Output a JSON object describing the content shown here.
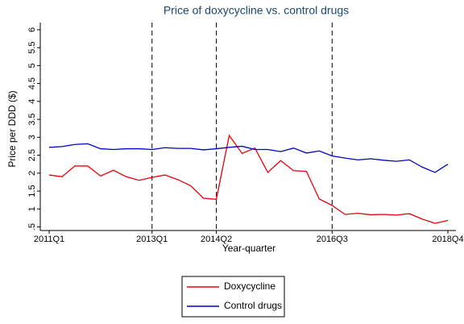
{
  "chart_data": {
    "type": "line",
    "title": "Price of doxycycline vs. control drugs",
    "x_label": "Year-quarter",
    "y_label": "Price per DDD ($)",
    "categories": [
      "2011Q1",
      null,
      null,
      null,
      null,
      null,
      null,
      null,
      "2013Q1",
      null,
      null,
      null,
      null,
      "2014Q2",
      null,
      null,
      null,
      null,
      null,
      null,
      null,
      null,
      "2016Q3",
      null,
      null,
      null,
      null,
      null,
      null,
      null,
      null,
      "2018Q4"
    ],
    "series": [
      {
        "name": "Doxycycline",
        "color": "#e8000b",
        "values": [
          1.95,
          1.9,
          2.2,
          2.2,
          1.92,
          2.08,
          1.9,
          1.8,
          1.88,
          1.95,
          1.82,
          1.65,
          1.3,
          1.27,
          3.05,
          2.55,
          2.7,
          2.02,
          2.35,
          2.07,
          2.05,
          1.28,
          1.1,
          0.85,
          0.88,
          0.84,
          0.85,
          0.83,
          0.87,
          0.72,
          0.6,
          0.68
        ]
      },
      {
        "name": "Control drugs",
        "color": "#0000cc",
        "values": [
          2.72,
          2.74,
          2.8,
          2.82,
          2.68,
          2.66,
          2.68,
          2.68,
          2.66,
          2.71,
          2.69,
          2.69,
          2.65,
          2.68,
          2.72,
          2.75,
          2.66,
          2.66,
          2.6,
          2.7,
          2.56,
          2.62,
          2.48,
          2.42,
          2.37,
          2.4,
          2.36,
          2.33,
          2.37,
          2.17,
          2.02,
          2.25
        ]
      }
    ],
    "ylim": [
      0.4,
      6.2
    ],
    "yticks": [
      {
        "value": 0.5,
        "label": ".5"
      },
      1,
      1.5,
      2,
      2.5,
      3,
      3.5,
      4,
      4.5,
      5,
      5.5,
      6
    ],
    "vlines": [
      "2013Q1",
      "2014Q2",
      "2016Q3"
    ],
    "legend": "bottom"
  }
}
